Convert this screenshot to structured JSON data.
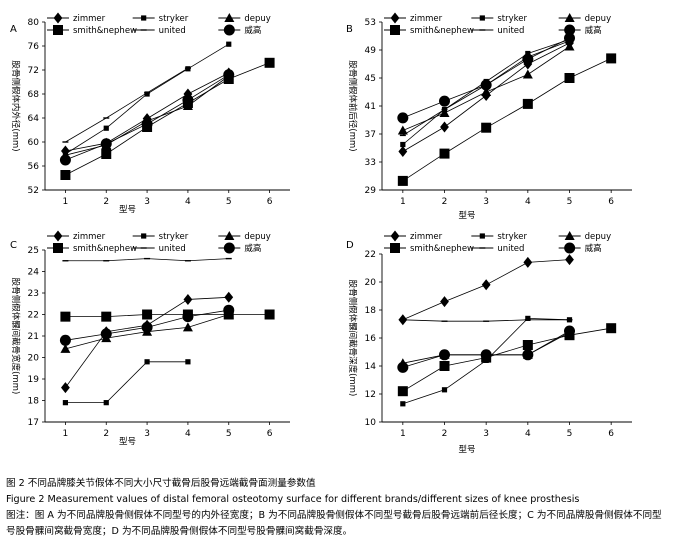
{
  "caption": {
    "cn_title": "图 2   不同品牌膝关节假体不同大小尺寸截骨后股骨远端截骨面测量参数值",
    "en_title": "Figure 2   Measurement values of distal femoral osteotomy surface for different brands/different sizes of knee prosthesis",
    "note": "图注：图 A 为不同品牌股骨侧假体不同型号的内外径宽度；B 为不同品牌股骨侧假体不同型号截骨后股骨远端前后径长度；C 为不同品牌股骨侧假体不同型号股骨髁间窝截骨宽度；D 为不同品牌股骨侧假体不同型号股骨髁间窝截骨深度。"
  },
  "legend_entries": [
    {
      "name": "zimmer",
      "marker": "diamond"
    },
    {
      "name": "stryker",
      "marker": "smallsquare"
    },
    {
      "name": "depuy",
      "marker": "triangle"
    },
    {
      "name": "smith&nephew",
      "marker": "square"
    },
    {
      "name": "united",
      "marker": "dash"
    },
    {
      "name": "威高",
      "marker": "circle"
    }
  ],
  "chart_data": [
    {
      "panel": "A",
      "type": "line",
      "xlabel": "型号",
      "ylabel": "股骨侧假体内外径(mm)",
      "ylim": [
        52,
        80
      ],
      "yticks": [
        52,
        56,
        60,
        64,
        68,
        72,
        76,
        80
      ],
      "xticks": [
        1,
        2,
        3,
        4,
        5,
        6
      ],
      "xlim": [
        0.5,
        6.5
      ],
      "series": [
        {
          "name": "zimmer",
          "x": [
            1,
            2,
            3,
            4,
            5
          ],
          "y": [
            58.5,
            59.8,
            63.9,
            68.0,
            71.5
          ]
        },
        {
          "name": "stryker",
          "x": [
            1,
            2,
            3,
            4,
            5
          ],
          "y": [
            58.0,
            62.3,
            68.0,
            72.2,
            76.3
          ]
        },
        {
          "name": "depuy",
          "x": [
            1,
            2,
            3,
            4,
            5
          ],
          "y": [
            57.8,
            59.5,
            63.5,
            66.0,
            71.0
          ]
        },
        {
          "name": "smith&nephew",
          "x": [
            1,
            2,
            3,
            4,
            5,
            6
          ],
          "y": [
            54.5,
            58.0,
            62.5,
            66.5,
            70.5,
            73.2
          ]
        },
        {
          "name": "united",
          "x": [
            1,
            2,
            3,
            4
          ],
          "y": [
            60.0,
            64.0,
            68.2,
            72.3
          ]
        },
        {
          "name": "威高",
          "x": [
            1,
            2,
            3,
            4,
            5
          ],
          "y": [
            57.0,
            59.7,
            63.0,
            67.0,
            71.2
          ]
        }
      ]
    },
    {
      "panel": "B",
      "type": "line",
      "xlabel": "型号",
      "ylabel": "股骨侧假体前后径(mm)",
      "ylim": [
        29,
        53
      ],
      "yticks": [
        29,
        33,
        37,
        41,
        45,
        49,
        53
      ],
      "xticks": [
        1,
        2,
        3,
        4,
        5,
        6
      ],
      "xlim": [
        0.5,
        6.5
      ],
      "series": [
        {
          "name": "zimmer",
          "x": [
            1,
            2,
            3,
            4,
            5
          ],
          "y": [
            34.5,
            38.0,
            42.5,
            47.0,
            50.0
          ]
        },
        {
          "name": "stryker",
          "x": [
            1,
            2,
            3,
            4,
            5
          ],
          "y": [
            35.5,
            40.5,
            44.5,
            48.5,
            50.5
          ]
        },
        {
          "name": "depuy",
          "x": [
            1,
            2,
            3,
            4,
            5
          ],
          "y": [
            37.5,
            40.0,
            43.0,
            45.5,
            49.5
          ]
        },
        {
          "name": "smith&nephew",
          "x": [
            1,
            2,
            3,
            4,
            5,
            6
          ],
          "y": [
            30.3,
            34.2,
            37.9,
            41.3,
            45.0,
            47.8
          ]
        },
        {
          "name": "united",
          "x": [
            1,
            2,
            3,
            4,
            5
          ],
          "y": [
            36.8,
            40.5,
            44.0,
            48.0,
            50.3
          ]
        },
        {
          "name": "威高",
          "x": [
            1,
            2,
            3,
            4,
            5
          ],
          "y": [
            39.3,
            41.7,
            44.0,
            47.7,
            50.7
          ]
        }
      ]
    },
    {
      "panel": "C",
      "type": "line",
      "xlabel": "型号",
      "ylabel": "股骨侧假体髁间截骨宽度(mm)",
      "ylim": [
        17,
        25
      ],
      "yticks": [
        17,
        18,
        19,
        20,
        21,
        22,
        23,
        24,
        25
      ],
      "xticks": [
        1,
        2,
        3,
        4,
        5,
        6
      ],
      "xlim": [
        0.5,
        6.5
      ],
      "series": [
        {
          "name": "zimmer",
          "x": [
            1,
            2,
            3,
            4,
            5
          ],
          "y": [
            18.6,
            21.2,
            21.5,
            22.7,
            22.8
          ]
        },
        {
          "name": "stryker",
          "x": [
            1,
            2,
            3,
            4
          ],
          "y": [
            17.9,
            17.9,
            19.8,
            19.8
          ]
        },
        {
          "name": "depuy",
          "x": [
            1,
            2,
            3,
            4,
            5
          ],
          "y": [
            20.4,
            20.9,
            21.2,
            21.4,
            22.0
          ]
        },
        {
          "name": "smith&nephew",
          "x": [
            1,
            2,
            3,
            4,
            5,
            6
          ],
          "y": [
            21.9,
            21.9,
            22.0,
            22.0,
            22.0,
            22.0
          ]
        },
        {
          "name": "united",
          "x": [
            1,
            2,
            3,
            4,
            5
          ],
          "y": [
            24.5,
            24.5,
            24.6,
            24.5,
            24.6
          ]
        },
        {
          "name": "威高",
          "x": [
            1,
            2,
            3,
            4,
            5
          ],
          "y": [
            20.8,
            21.1,
            21.4,
            21.9,
            22.2
          ]
        }
      ]
    },
    {
      "panel": "D",
      "type": "line",
      "xlabel": "型号",
      "ylabel": "股骨侧假体髁间截骨深度(mm)",
      "ylim": [
        10,
        22
      ],
      "yticks": [
        10,
        12,
        14,
        16,
        18,
        20,
        22
      ],
      "xticks": [
        1,
        2,
        3,
        4,
        5,
        6
      ],
      "xlim": [
        0.5,
        6.5
      ],
      "series": [
        {
          "name": "zimmer",
          "x": [
            1,
            2,
            3,
            4,
            5
          ],
          "y": [
            17.3,
            18.6,
            19.8,
            21.4,
            21.6
          ]
        },
        {
          "name": "stryker",
          "x": [
            1,
            2,
            3,
            4,
            5
          ],
          "y": [
            11.3,
            12.3,
            14.4,
            17.4,
            17.3
          ]
        },
        {
          "name": "depuy",
          "x": [
            1,
            2,
            3,
            4,
            5
          ],
          "y": [
            14.2,
            14.8,
            14.8,
            14.8,
            16.4
          ]
        },
        {
          "name": "smith&nephew",
          "x": [
            1,
            2,
            3,
            4,
            5,
            6
          ],
          "y": [
            12.2,
            14.0,
            14.6,
            15.5,
            16.2,
            16.7
          ]
        },
        {
          "name": "united",
          "x": [
            1,
            2,
            3,
            4,
            5
          ],
          "y": [
            17.3,
            17.2,
            17.2,
            17.3,
            17.3
          ]
        },
        {
          "name": "威高",
          "x": [
            1,
            2,
            3,
            4,
            5
          ],
          "y": [
            13.9,
            14.8,
            14.8,
            14.8,
            16.5
          ]
        }
      ]
    }
  ]
}
